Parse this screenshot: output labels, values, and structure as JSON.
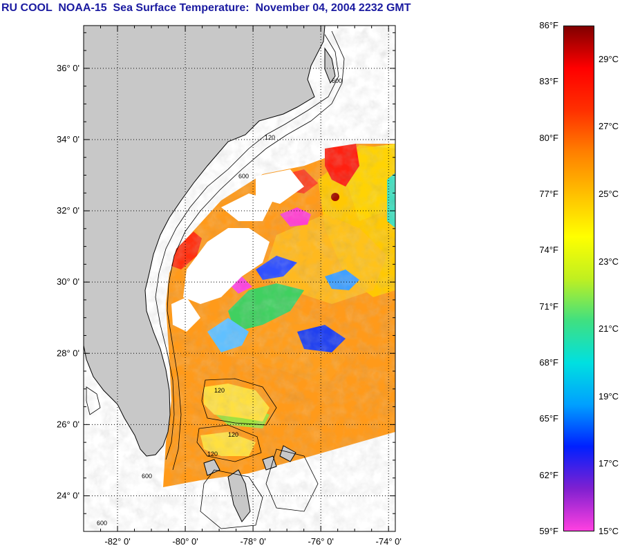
{
  "title": "RU COOL  NOAA-15  Sea Surface Temperature:  November 04, 2004 2232 GMT",
  "map": {
    "lat_labels": [
      {
        "lat": 36,
        "label": "36° 0'"
      },
      {
        "lat": 34,
        "label": "34° 0'"
      },
      {
        "lat": 32,
        "label": "32° 0'"
      },
      {
        "lat": 30,
        "label": "30° 0'"
      },
      {
        "lat": 28,
        "label": "28° 0'"
      },
      {
        "lat": 26,
        "label": "26° 0'"
      },
      {
        "lat": 24,
        "label": "24° 0'"
      }
    ],
    "lon_labels": [
      {
        "lon": -82,
        "label": "-82° 0'"
      },
      {
        "lon": -80,
        "label": "-80° 0'"
      },
      {
        "lon": -78,
        "label": "-78° 0'"
      },
      {
        "lon": -76,
        "label": "-76° 0'"
      },
      {
        "lon": -74,
        "label": "-74° 0'"
      }
    ],
    "lat_range": [
      23,
      37.2
    ],
    "lon_range": [
      -83,
      -73.8
    ],
    "grid": "dotted",
    "land_color": "#c8c8c8",
    "contour_labels": [
      "120",
      "600"
    ]
  },
  "legend": {
    "fahrenheit": [
      "86°F",
      "83°F",
      "80°F",
      "77°F",
      "74°F",
      "71°F",
      "68°F",
      "65°F",
      "62°F",
      "59°F"
    ],
    "celsius": [
      "29°C",
      "27°C",
      "25°C",
      "23°C",
      "21°C",
      "19°C",
      "17°C",
      "15°C"
    ],
    "range_f": [
      59,
      86
    ],
    "colors": [
      "#ff40e0",
      "#8020d0",
      "#0020ff",
      "#00a0ff",
      "#00e0e0",
      "#40e080",
      "#c0f020",
      "#ffff00",
      "#ffc000",
      "#ff8000",
      "#ff3000",
      "#ff0000",
      "#800000"
    ]
  }
}
